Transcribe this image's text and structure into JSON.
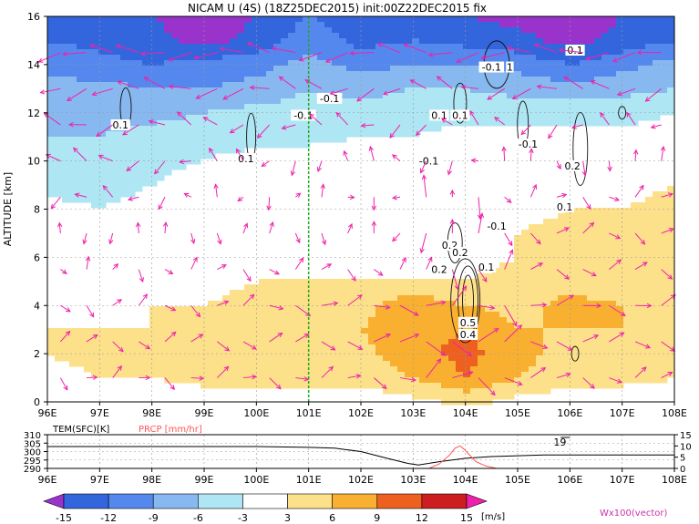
{
  "title": "NICAM U (4S) (18Z25DEC2015) init:00Z22DEC2015 fix",
  "chart_data": [
    {
      "type": "heatmap",
      "panel": "cross-section",
      "title": "NICAM U (4S) (18Z25DEC2015) init:00Z22DEC2015 fix",
      "ylabel": "ALTITUDE [km]",
      "xlim": [
        96,
        108
      ],
      "ylim": [
        0,
        16
      ],
      "x_ticks": [
        "96E",
        "97E",
        "98E",
        "99E",
        "100E",
        "101E",
        "102E",
        "103E",
        "104E",
        "105E",
        "106E",
        "107E",
        "108E"
      ],
      "y_ticks": [
        "0",
        "2",
        "4",
        "6",
        "8",
        "10",
        "12",
        "14",
        "16"
      ],
      "grid": true,
      "marker_line_lon": 101,
      "marker_line_color": "#22aa22",
      "shading_levels": [
        -15,
        -12,
        -9,
        -6,
        -3,
        3,
        6,
        9,
        12,
        15
      ],
      "shading_colors": [
        "#9933cc",
        "#3366dd",
        "#5588ee",
        "#88b8f0",
        "#aee6f4",
        "#ffffff",
        "#fde08a",
        "#f9b030",
        "#ee6020",
        "#cc1e1e",
        "#a8001e"
      ],
      "u_field": {
        "lons": [
          96,
          97,
          98,
          99,
          100,
          101,
          102,
          103,
          104,
          105,
          106,
          107,
          108
        ],
        "alts": [
          0,
          1,
          2,
          3,
          4,
          5,
          6,
          7,
          8,
          9,
          10,
          11,
          12,
          13,
          14,
          15,
          16
        ],
        "values": [
          [
            1,
            1,
            1,
            1,
            1,
            1,
            1,
            2,
            4,
            2,
            1,
            1,
            1
          ],
          [
            2,
            3,
            3,
            4,
            4,
            4,
            4,
            6,
            9,
            6,
            4,
            4,
            3
          ],
          [
            3,
            4,
            4,
            4,
            4,
            4,
            5,
            8,
            10,
            7,
            5,
            5,
            4
          ],
          [
            3,
            3,
            3,
            4,
            5,
            5,
            6,
            8,
            9,
            6,
            6,
            6,
            5
          ],
          [
            3,
            2,
            3,
            3,
            4,
            6,
            5,
            8,
            6,
            5,
            7,
            6,
            5
          ],
          [
            1,
            1,
            2,
            2,
            3,
            3,
            3,
            4,
            3,
            4,
            5,
            4,
            4
          ],
          [
            1,
            0,
            1,
            2,
            2,
            2,
            2,
            -1,
            2,
            3,
            4,
            4,
            3
          ],
          [
            0,
            -1,
            0,
            1,
            1,
            1,
            1,
            -3,
            1,
            3,
            4,
            3,
            4
          ],
          [
            -2,
            -3,
            -2,
            0,
            0,
            1,
            1,
            -2,
            1,
            2,
            3,
            3,
            4
          ],
          [
            -4,
            -4,
            -3,
            -1,
            -1,
            0,
            0,
            -1,
            0,
            1,
            2,
            2,
            3
          ],
          [
            -5,
            -5,
            -4,
            -3,
            -2,
            -1,
            -1,
            -2,
            -1,
            0,
            1,
            0,
            1
          ],
          [
            -6,
            -6,
            -5,
            -4,
            -4,
            -4,
            -3,
            -3,
            -2,
            -2,
            -2,
            -2,
            -2
          ],
          [
            -7,
            -7,
            -7,
            -6,
            -5,
            -5,
            -5,
            -4,
            -4,
            -4,
            -4,
            -4,
            -3
          ],
          [
            -8,
            -8,
            -9,
            -9,
            -8,
            -6,
            -7,
            -6,
            -6,
            -7,
            -8,
            -7,
            -6
          ],
          [
            -10,
            -11,
            -12,
            -11,
            -10,
            -8,
            -10,
            -9,
            -9,
            -10,
            -12,
            -10,
            -8
          ],
          [
            -12,
            -13,
            -14,
            -16,
            -14,
            -10,
            -13,
            -12,
            -13,
            -14,
            -16,
            -14,
            -12
          ],
          [
            -13,
            -14,
            -15,
            -17,
            -15,
            -12,
            -14,
            -13,
            -15,
            -16,
            -17,
            -15,
            -13
          ]
        ]
      },
      "contours_w": {
        "unit": "m/s",
        "labels": [
          {
            "lon": 97.4,
            "alt": 11.5,
            "text": "0.1"
          },
          {
            "lon": 99.8,
            "alt": 10.1,
            "text": "0.1"
          },
          {
            "lon": 100.9,
            "alt": 11.9,
            "text": "-0.1"
          },
          {
            "lon": 101.4,
            "alt": 12.6,
            "text": "-0.1"
          },
          {
            "lon": 103.3,
            "alt": 10.0,
            "text": "-0.1"
          },
          {
            "lon": 103.5,
            "alt": 11.9,
            "text": "0.1"
          },
          {
            "lon": 103.9,
            "alt": 11.9,
            "text": "0.1"
          },
          {
            "lon": 104.5,
            "alt": 13.9,
            "text": "-0.1"
          },
          {
            "lon": 104.85,
            "alt": 13.9,
            "text": "1"
          },
          {
            "lon": 106.1,
            "alt": 14.6,
            "text": "0.1"
          },
          {
            "lon": 105.2,
            "alt": 10.7,
            "text": "-0.1"
          },
          {
            "lon": 106.05,
            "alt": 9.8,
            "text": "0.2"
          },
          {
            "lon": 105.9,
            "alt": 8.1,
            "text": "0.1"
          },
          {
            "lon": 104.6,
            "alt": 7.3,
            "text": "-0.1"
          },
          {
            "lon": 103.7,
            "alt": 6.5,
            "text": "0.2"
          },
          {
            "lon": 103.9,
            "alt": 6.2,
            "text": "0.2"
          },
          {
            "lon": 103.5,
            "alt": 5.5,
            "text": "0.2"
          },
          {
            "lon": 104.4,
            "alt": 5.6,
            "text": "0.1"
          },
          {
            "lon": 104.05,
            "alt": 3.3,
            "text": "0.5"
          },
          {
            "lon": 104.05,
            "alt": 2.8,
            "text": "0.4"
          }
        ]
      },
      "vectors": {
        "label": "Wx100(vector)",
        "color": "#ee22aa",
        "lons": [
          96.25,
          96.75,
          97.25,
          97.75,
          98.25,
          98.75,
          99.25,
          99.75,
          100.25,
          100.75,
          101.25,
          101.75,
          102.25,
          102.75,
          103.25,
          103.75,
          104.25,
          104.75,
          105.25,
          105.75,
          106.25,
          106.75,
          107.25,
          107.75
        ],
        "alts": [
          1,
          2.5,
          4,
          5.5,
          7,
          8.5,
          10,
          11.5,
          13,
          14.5
        ]
      }
    },
    {
      "type": "line",
      "panel": "surface",
      "xlim": [
        96,
        108
      ],
      "x_ticks": [
        "96E",
        "97E",
        "98E",
        "99E",
        "100E",
        "101E",
        "102E",
        "103E",
        "104E",
        "105E",
        "106E",
        "107E",
        "108E"
      ],
      "series": [
        {
          "name": "TEM(SFC)[K]",
          "color": "#000000",
          "axis": "left",
          "ylim": [
            290,
            310
          ],
          "y_ticks": [
            "290",
            "295",
            "300",
            "305",
            "310"
          ],
          "x": [
            96,
            97,
            98,
            99,
            100,
            101,
            101.5,
            102,
            102.5,
            102.9,
            103.1,
            103.5,
            104,
            104.5,
            105,
            105.5,
            106,
            106.5,
            107,
            108
          ],
          "values": [
            303,
            303,
            303,
            303,
            303,
            302.5,
            302,
            300,
            296,
            293,
            292,
            294,
            296,
            297,
            297.5,
            298,
            298,
            298,
            298,
            298
          ]
        },
        {
          "name": "PRCP [mm/hr]",
          "color": "#ff5555",
          "axis": "right",
          "ylim": [
            0,
            15
          ],
          "y_ticks": [
            "0",
            "5",
            "10",
            "15"
          ],
          "x": [
            96,
            103.3,
            103.5,
            103.7,
            103.8,
            103.9,
            104.0,
            104.2,
            104.4,
            104.6,
            105,
            108
          ],
          "values": [
            0,
            0,
            2,
            6,
            9,
            10,
            8,
            3,
            1,
            0,
            0,
            0
          ]
        }
      ],
      "annotations": [
        {
          "lon": 106.0,
          "text": "19"
        }
      ]
    }
  ],
  "colorbar": {
    "labels": [
      "-15",
      "-12",
      "-9",
      "-6",
      "-3",
      "3",
      "6",
      "9",
      "12",
      "15"
    ],
    "unit": "[m/s]"
  },
  "legend_vector": "Wx100(vector)"
}
